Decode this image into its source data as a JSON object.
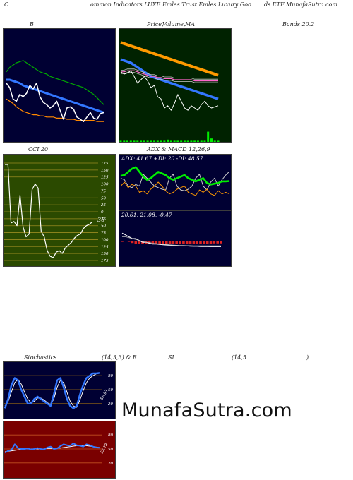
{
  "header": {
    "left": "C",
    "middle": "ommon  Indicators LUXE Emles Trust Emles Luxury Goo",
    "right": "ds ETF MunafaSutra.com"
  },
  "titles": {
    "bands_b": "B",
    "price_a": "Price,",
    "price_b": "Volume,",
    "price_c": "MA",
    "bands_right": "Bands 20.2",
    "cci": "CCI 20",
    "adx": "ADX  & MACD 12,26,9",
    "stoch_a": "Stochastics",
    "stoch_b": "(14,3,3) & R",
    "stoch_c": "SI",
    "stoch_d": "(14,5",
    "stoch_e": ")"
  },
  "cci_panel": {
    "ticks": [
      "175",
      "150",
      "125",
      "100",
      "75",
      "50",
      "25",
      "0",
      "25",
      "50",
      "75",
      "100",
      "125",
      "150",
      "175"
    ],
    "value_label": "36"
  },
  "adx_panel": {
    "readout": "ADX: 41.67  +DI: 20  -DI: 48.57"
  },
  "macd_panel": {
    "readout": "20.61,  21.08,  -0.47"
  },
  "stoch_panel": {
    "ticks": [
      "80",
      "50",
      "20"
    ],
    "value_label": "85.93"
  },
  "rsi_panel": {
    "ticks": [
      "80",
      "50",
      "20"
    ],
    "value_label": "52.78"
  },
  "watermark": "MunafaSutra.com",
  "colors": {
    "dark_panel": "#000033",
    "green_panel": "#002200",
    "cci_bg": "#2b4a00",
    "rsi_bg": "#7a0000",
    "band_outer": "#00cc00",
    "band_lower": "#ff8800",
    "band_mid": "#3377ff",
    "price": "#ffffff"
  },
  "chart_data": [
    {
      "type": "line",
      "name": "bollinger-bands",
      "x": [
        1,
        2,
        3,
        4,
        5,
        6,
        7,
        8,
        9,
        10,
        11,
        12,
        13,
        14,
        15,
        16,
        17,
        18,
        19,
        20,
        21,
        22,
        23,
        24,
        25,
        26,
        27,
        28,
        29,
        30
      ],
      "series": [
        {
          "values": [
            0.62,
            0.66,
            0.68,
            0.7,
            0.71,
            0.72,
            0.7,
            0.68,
            0.66,
            0.64,
            0.62,
            0.61,
            0.6,
            0.58,
            0.57,
            0.56,
            0.55,
            0.54,
            0.53,
            0.52,
            0.51,
            0.5,
            0.49,
            0.48,
            0.46,
            0.44,
            0.42,
            0.39,
            0.36,
            0.33
          ]
        },
        {
          "values": [
            0.55,
            0.55,
            0.54,
            0.53,
            0.52,
            0.5,
            0.49,
            0.48,
            0.47,
            0.46,
            0.45,
            0.44,
            0.43,
            0.42,
            0.41,
            0.4,
            0.39,
            0.38,
            0.37,
            0.36,
            0.35,
            0.34,
            0.33,
            0.32,
            0.31,
            0.3,
            0.29,
            0.28,
            0.27,
            0.26
          ]
        },
        {
          "values": [
            0.38,
            0.36,
            0.34,
            0.31,
            0.29,
            0.27,
            0.26,
            0.25,
            0.24,
            0.24,
            0.23,
            0.23,
            0.22,
            0.22,
            0.22,
            0.21,
            0.21,
            0.21,
            0.2,
            0.2,
            0.2,
            0.19,
            0.19,
            0.19,
            0.19,
            0.19,
            0.19,
            0.18,
            0.18,
            0.18
          ]
        },
        {
          "values": [
            0.52,
            0.48,
            0.38,
            0.36,
            0.42,
            0.4,
            0.43,
            0.5,
            0.47,
            0.52,
            0.4,
            0.35,
            0.33,
            0.3,
            0.32,
            0.36,
            0.28,
            0.2,
            0.3,
            0.31,
            0.29,
            0.22,
            0.2,
            0.18,
            0.22,
            0.26,
            0.21,
            0.2,
            0.25,
            0.26
          ]
        }
      ]
    },
    {
      "type": "line",
      "name": "price-volume-ma",
      "x": [
        1,
        2,
        3,
        4,
        5,
        6,
        7,
        8,
        9,
        10,
        11,
        12,
        13,
        14,
        15,
        16,
        17,
        18,
        19,
        20,
        21,
        22,
        23,
        24,
        25,
        26,
        27,
        28,
        29,
        30
      ],
      "series": [
        {
          "values": [
            0.88,
            0.87,
            0.86,
            0.85,
            0.84,
            0.83,
            0.82,
            0.81,
            0.8,
            0.79,
            0.78,
            0.77,
            0.76,
            0.75,
            0.74,
            0.73,
            0.72,
            0.71,
            0.7,
            0.69,
            0.68,
            0.67,
            0.66,
            0.65,
            0.64,
            0.63,
            0.62,
            0.61,
            0.6,
            0.59
          ]
        },
        {
          "values": [
            0.73,
            0.72,
            0.71,
            0.7,
            0.68,
            0.66,
            0.64,
            0.62,
            0.6,
            0.58,
            0.57,
            0.56,
            0.55,
            0.54,
            0.53,
            0.52,
            0.51,
            0.5,
            0.49,
            0.48,
            0.47,
            0.46,
            0.45,
            0.44,
            0.43,
            0.42,
            0.41,
            0.4,
            0.39,
            0.38
          ]
        },
        {
          "values": [
            0.62,
            0.62,
            0.63,
            0.63,
            0.63,
            0.62,
            0.61,
            0.6,
            0.59,
            0.58,
            0.58,
            0.57,
            0.57,
            0.56,
            0.56,
            0.56,
            0.55,
            0.55,
            0.55,
            0.55,
            0.55,
            0.55,
            0.54,
            0.54,
            0.54,
            0.54,
            0.54,
            0.54,
            0.54,
            0.54
          ]
        },
        {
          "values": [
            0.62,
            0.6,
            0.61,
            0.63,
            0.58,
            0.52,
            0.55,
            0.58,
            0.54,
            0.48,
            0.5,
            0.4,
            0.38,
            0.3,
            0.32,
            0.28,
            0.34,
            0.42,
            0.36,
            0.3,
            0.28,
            0.32,
            0.3,
            0.28,
            0.33,
            0.36,
            0.32,
            0.3,
            0.31,
            0.32
          ]
        },
        {
          "values": [
            0.01,
            0.01,
            0.01,
            0.01,
            0.01,
            0.01,
            0.01,
            0.01,
            0.01,
            0.01,
            0.01,
            0.01,
            0.01,
            0.01,
            0.02,
            0.01,
            0.01,
            0.01,
            0.01,
            0.01,
            0.01,
            0.01,
            0.01,
            0.01,
            0.01,
            0.01,
            0.09,
            0.03,
            0.01,
            0.01
          ]
        }
      ]
    },
    {
      "type": "line",
      "name": "cci",
      "x": [
        1,
        2,
        3,
        4,
        5,
        6,
        7,
        8,
        9,
        10,
        11,
        12,
        13,
        14,
        15,
        16,
        17,
        18,
        19,
        20,
        21,
        22,
        23,
        24,
        25,
        26,
        27,
        28,
        29,
        30
      ],
      "ylim": [
        -175,
        175
      ],
      "series": [
        {
          "values": [
            170,
            170,
            -40,
            -35,
            -50,
            60,
            -55,
            -90,
            -80,
            80,
            100,
            85,
            -70,
            -90,
            -140,
            -160,
            -165,
            -145,
            -140,
            -150,
            -130,
            -120,
            -110,
            -95,
            -85,
            -80,
            -60,
            -50,
            -45,
            -36
          ]
        }
      ]
    },
    {
      "type": "line",
      "name": "adx",
      "x": [
        1,
        2,
        3,
        4,
        5,
        6,
        7,
        8,
        9,
        10,
        11,
        12,
        13,
        14,
        15,
        16,
        17,
        18,
        19,
        20,
        21,
        22,
        23,
        24,
        25,
        26,
        27,
        28,
        29,
        30
      ],
      "series": [
        {
          "values": [
            40,
            38,
            30,
            28,
            32,
            30,
            45,
            40,
            35,
            30,
            28,
            26,
            25,
            40,
            45,
            30,
            25,
            24,
            26,
            30,
            40,
            45,
            30,
            25,
            35,
            40,
            30,
            38,
            44,
            48.57
          ]
        },
        {
          "values": [
            30,
            35,
            28,
            32,
            30,
            22,
            24,
            20,
            26,
            30,
            35,
            30,
            24,
            20,
            22,
            26,
            28,
            30,
            22,
            20,
            18,
            25,
            22,
            26,
            20,
            18,
            24,
            20,
            22,
            20
          ]
        },
        {
          "values": [
            35,
            34,
            30,
            26,
            24,
            30,
            36,
            40,
            38,
            34,
            30,
            32,
            34,
            38,
            40,
            38,
            36,
            34,
            38,
            40,
            42,
            40,
            38,
            44,
            46,
            45,
            44,
            42,
            42,
            41.67
          ]
        }
      ]
    },
    {
      "type": "line",
      "name": "macd",
      "x": [
        1,
        2,
        3,
        4,
        5,
        6,
        7,
        8,
        9,
        10,
        11,
        12,
        13,
        14,
        15,
        16,
        17,
        18,
        19,
        20,
        21,
        22,
        23,
        24,
        25,
        26,
        27,
        28,
        29,
        30
      ],
      "series": [
        {
          "values": [
            28,
            27,
            26,
            25,
            25,
            24,
            23,
            23,
            22.5,
            22,
            22,
            21.8,
            21.6,
            21.5,
            21.4,
            21.3,
            21.2,
            21.1,
            21.0,
            21.0,
            20.9,
            20.8,
            20.8,
            20.7,
            20.7,
            20.7,
            20.6,
            20.6,
            20.6,
            20.61
          ]
        },
        {
          "values": [
            26,
            26,
            25.5,
            25,
            24.5,
            24,
            23.5,
            23,
            22.8,
            22.5,
            22.3,
            22.1,
            21.9,
            21.8,
            21.6,
            21.5,
            21.4,
            21.3,
            21.3,
            21.2,
            21.2,
            21.1,
            21.1,
            21.1,
            21.1,
            21.1,
            21.1,
            21.1,
            21.08,
            21.08
          ]
        },
        {
          "values": [
            0.2,
            0.1,
            -0.2,
            -0.4,
            -0.5,
            -0.6,
            -0.6,
            -0.6,
            -0.6,
            -0.6,
            -0.6,
            -0.55,
            -0.5,
            -0.5,
            -0.5,
            -0.5,
            -0.5,
            -0.5,
            -0.5,
            -0.5,
            -0.5,
            -0.5,
            -0.5,
            -0.5,
            -0.5,
            -0.5,
            -0.5,
            -0.47,
            -0.47,
            -0.47
          ]
        }
      ]
    },
    {
      "type": "line",
      "name": "stochastics",
      "x": [
        1,
        2,
        3,
        4,
        5,
        6,
        7,
        8,
        9,
        10,
        11,
        12,
        13,
        14,
        15,
        16,
        17,
        18,
        19,
        20,
        21,
        22,
        23,
        24,
        25,
        26,
        27,
        28,
        29,
        30
      ],
      "ylim": [
        0,
        100
      ],
      "series": [
        {
          "values": [
            10,
            30,
            60,
            75,
            70,
            50,
            35,
            20,
            20,
            30,
            35,
            30,
            25,
            20,
            15,
            40,
            70,
            75,
            55,
            30,
            15,
            10,
            15,
            40,
            60,
            75,
            80,
            85,
            85,
            85.93
          ]
        },
        {
          "values": [
            15,
            25,
            45,
            65,
            72,
            62,
            45,
            30,
            22,
            25,
            32,
            32,
            28,
            22,
            18,
            30,
            55,
            70,
            65,
            45,
            25,
            15,
            12,
            28,
            48,
            65,
            75,
            80,
            84,
            85
          ]
        }
      ]
    },
    {
      "type": "line",
      "name": "rsi",
      "x": [
        1,
        2,
        3,
        4,
        5,
        6,
        7,
        8,
        9,
        10,
        11,
        12,
        13,
        14,
        15,
        16,
        17,
        18,
        19,
        20,
        21,
        22,
        23,
        24,
        25,
        26,
        27,
        28,
        29,
        30
      ],
      "ylim": [
        0,
        100
      ],
      "series": [
        {
          "values": [
            42,
            46,
            48,
            60,
            52,
            50,
            50,
            51,
            49,
            50,
            52,
            50,
            49,
            53,
            55,
            50,
            51,
            56,
            60,
            58,
            57,
            62,
            58,
            57,
            55,
            60,
            58,
            55,
            53,
            52.78
          ]
        },
        {
          "values": [
            44,
            45,
            46,
            47,
            48,
            49,
            50,
            50,
            50,
            50,
            50,
            50,
            50,
            51,
            51,
            51,
            52,
            52,
            53,
            54,
            55,
            56,
            57,
            57,
            57,
            57,
            56,
            55,
            54,
            53
          ]
        }
      ]
    }
  ]
}
